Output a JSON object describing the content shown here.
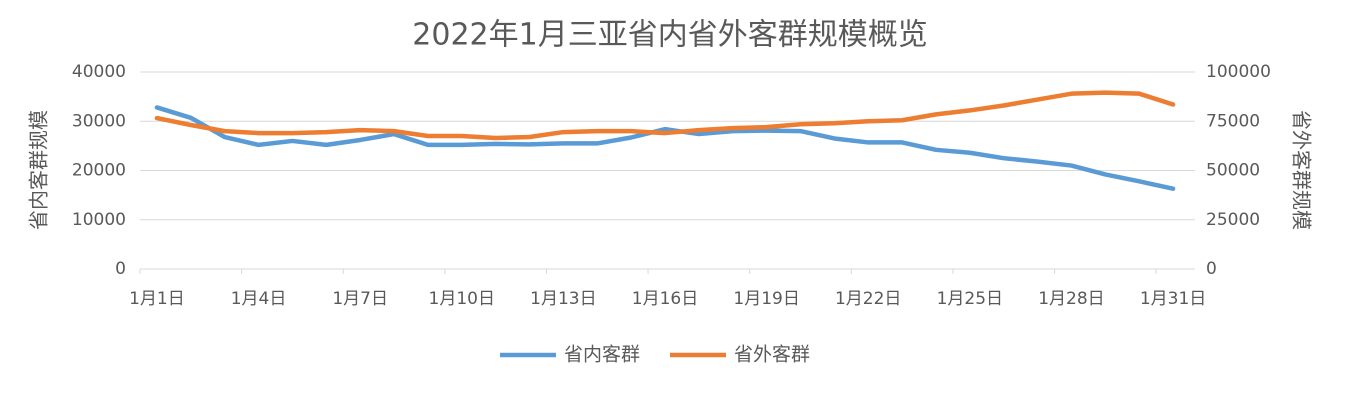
{
  "chart_data": {
    "type": "line",
    "title": "2022年1月三亚省内省外客群规模概览",
    "y_label": "省内客群规模",
    "y2_label": "省外客群规模",
    "categories": [
      "1月1日",
      null,
      null,
      "1月4日",
      null,
      null,
      "1月7日",
      null,
      null,
      "1月10日",
      null,
      null,
      "1月13日",
      null,
      null,
      "1月16日",
      null,
      null,
      "1月19日",
      null,
      null,
      "1月22日",
      null,
      null,
      "1月25日",
      null,
      null,
      "1月28日",
      null,
      null,
      "1月31日"
    ],
    "series": [
      {
        "name": "省内客群",
        "color": "#5b9bd5",
        "values": [
          32800,
          30700,
          26800,
          25200,
          26000,
          25200,
          26200,
          27400,
          25200,
          25200,
          25400,
          25300,
          25500,
          25500,
          26700,
          28400,
          27400,
          28000,
          28100,
          28000,
          26500,
          25700,
          25700,
          24200,
          23600,
          22500,
          21800,
          21000,
          19200,
          17800,
          16300
        ]
      },
      {
        "name": "省外客群",
        "color": "#ed7d31",
        "axis": "y2",
        "values": [
          76600,
          73100,
          70000,
          69000,
          69000,
          69500,
          70500,
          70000,
          67500,
          67500,
          66500,
          67000,
          69500,
          70000,
          70000,
          69000,
          70500,
          71500,
          72000,
          73500,
          74000,
          75000,
          75500,
          78500,
          80500,
          83000,
          86000,
          89000,
          89500,
          89000,
          83500
        ]
      }
    ],
    "ylim": [
      0,
      40000
    ],
    "yticks": [
      0,
      10000,
      20000,
      30000,
      40000
    ],
    "y2lim": [
      0,
      100000
    ],
    "y2ticks": [
      0,
      25000,
      50000,
      75000,
      100000
    ],
    "grid": true,
    "legend": "bottom"
  }
}
